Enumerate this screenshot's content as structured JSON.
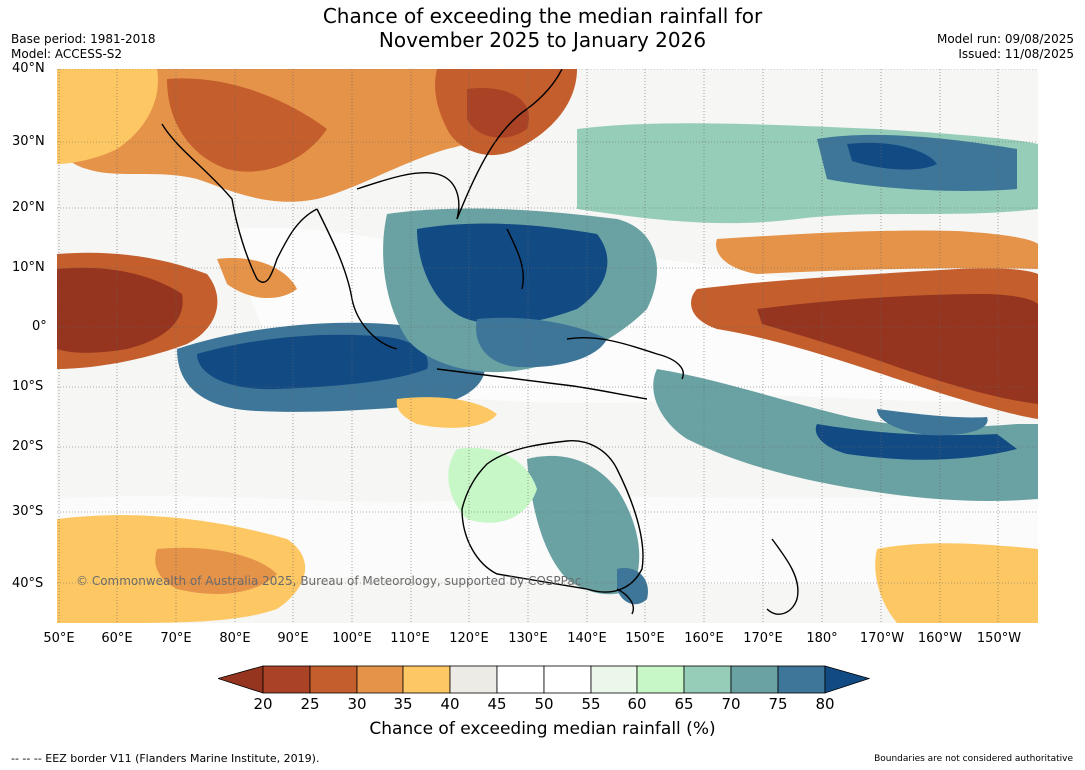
{
  "title": {
    "line1": "Chance of exceeding the median rainfall for",
    "line2": "November 2025 to January 2026"
  },
  "meta_left": {
    "base_period": "Base period: 1981-2018",
    "model": "Model: ACCESS-S2"
  },
  "meta_right": {
    "model_run": "Model run: 09/08/2025",
    "issued": "Issued: 11/08/2025"
  },
  "map": {
    "lat_labels": [
      "40°N",
      "30°N",
      "20°N",
      "10°N",
      "0°",
      "10°S",
      "20°S",
      "30°S",
      "40°S"
    ],
    "lon_labels": [
      "50°E",
      "60°E",
      "70°E",
      "80°E",
      "90°E",
      "100°E",
      "110°E",
      "120°E",
      "130°E",
      "140°E",
      "150°E",
      "160°E",
      "170°E",
      "180°",
      "170°W",
      "160°W",
      "150°W"
    ],
    "copyright": "© Commonwealth of Australia 2025, Bureau of Meteorology, supported by COSPPac",
    "colors": {
      "very_dry": "#953520",
      "dry": "#c45e2c",
      "mod_dry": "#e6934a",
      "slight_dry": "#fdc864",
      "neutral_grey": "#ecebe6",
      "white": "#ffffff",
      "slight_wet": "#c7f7c7",
      "mod_wet": "#96cdb9",
      "wet": "#6aa2a3",
      "very_wet": "#3d7699",
      "extreme_wet": "#124b84"
    }
  },
  "colorbar": {
    "ticks": [
      "20",
      "25",
      "30",
      "35",
      "40",
      "45",
      "50",
      "55",
      "60",
      "65",
      "70",
      "75",
      "80"
    ],
    "colors": [
      "#953520",
      "#aa4326",
      "#c45e2c",
      "#e6934a",
      "#fdc864",
      "#ecebe6",
      "#ffffff",
      "#ffffff",
      "#eaf7ea",
      "#c7f7c7",
      "#96cdb9",
      "#6aa2a3",
      "#3d7699",
      "#124b84"
    ],
    "label": "Chance of exceeding median rainfall (%)"
  },
  "footer": {
    "left": "--  --  -- EEZ border V11 (Flanders Marine Institute, 2019).",
    "right": "Boundaries are not considered authoritative"
  }
}
